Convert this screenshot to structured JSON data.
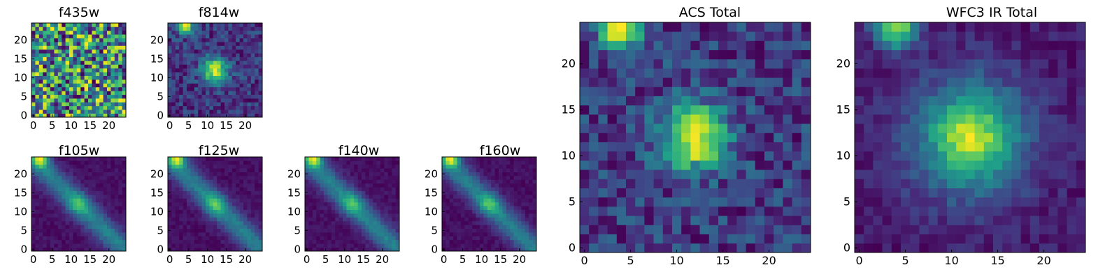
{
  "chart_data": [
    {
      "type": "heatmap",
      "title": "f435w",
      "pattern": "noise",
      "seed": 7,
      "xticks": [
        "0",
        "5",
        "10",
        "15",
        "20"
      ],
      "yticks": [
        "0",
        "5",
        "10",
        "15",
        "20"
      ],
      "xlim": [
        0,
        24
      ],
      "ylim": [
        0,
        24
      ],
      "colormap": "viridis"
    },
    {
      "type": "heatmap",
      "title": "f814w",
      "pattern": "blob",
      "seed": 11,
      "xticks": [
        "0",
        "5",
        "10",
        "15",
        "20"
      ],
      "yticks": [
        "0",
        "5",
        "10",
        "15",
        "20"
      ],
      "xlim": [
        0,
        24
      ],
      "ylim": [
        0,
        24
      ],
      "colormap": "viridis"
    },
    {
      "type": "heatmap",
      "title": "f105w",
      "pattern": "streak",
      "seed": 13,
      "xticks": [
        "0",
        "5",
        "10",
        "15",
        "20"
      ],
      "yticks": [
        "0",
        "5",
        "10",
        "15",
        "20"
      ],
      "xlim": [
        0,
        24
      ],
      "ylim": [
        0,
        24
      ],
      "colormap": "viridis"
    },
    {
      "type": "heatmap",
      "title": "f125w",
      "pattern": "streak",
      "seed": 17,
      "xticks": [
        "0",
        "5",
        "10",
        "15",
        "20"
      ],
      "yticks": [
        "0",
        "5",
        "10",
        "15",
        "20"
      ],
      "xlim": [
        0,
        24
      ],
      "ylim": [
        0,
        24
      ],
      "colormap": "viridis"
    },
    {
      "type": "heatmap",
      "title": "f140w",
      "pattern": "streak",
      "seed": 19,
      "xticks": [
        "0",
        "5",
        "10",
        "15",
        "20"
      ],
      "yticks": [
        "0",
        "5",
        "10",
        "15",
        "20"
      ],
      "xlim": [
        0,
        24
      ],
      "ylim": [
        0,
        24
      ],
      "colormap": "viridis"
    },
    {
      "type": "heatmap",
      "title": "f160w",
      "pattern": "streak",
      "seed": 23,
      "xticks": [
        "0",
        "5",
        "10",
        "15",
        "20"
      ],
      "yticks": [
        "0",
        "5",
        "10",
        "15",
        "20"
      ],
      "xlim": [
        0,
        24
      ],
      "ylim": [
        0,
        24
      ],
      "colormap": "viridis"
    },
    {
      "type": "heatmap",
      "title": "ACS Total",
      "pattern": "blob",
      "seed": 29,
      "xticks": [
        "0",
        "5",
        "10",
        "15",
        "20"
      ],
      "yticks": [
        "0",
        "5",
        "10",
        "15",
        "20"
      ],
      "xlim": [
        0,
        24
      ],
      "ylim": [
        0,
        24
      ],
      "colormap": "viridis"
    },
    {
      "type": "heatmap",
      "title": "WFC3 IR Total",
      "pattern": "blobsmooth",
      "seed": 31,
      "xticks": [
        "0",
        "5",
        "10",
        "15",
        "20"
      ],
      "yticks": [
        "0",
        "5",
        "10",
        "15",
        "20"
      ],
      "xlim": [
        0,
        24
      ],
      "ylim": [
        0,
        24
      ],
      "colormap": "viridis"
    }
  ]
}
